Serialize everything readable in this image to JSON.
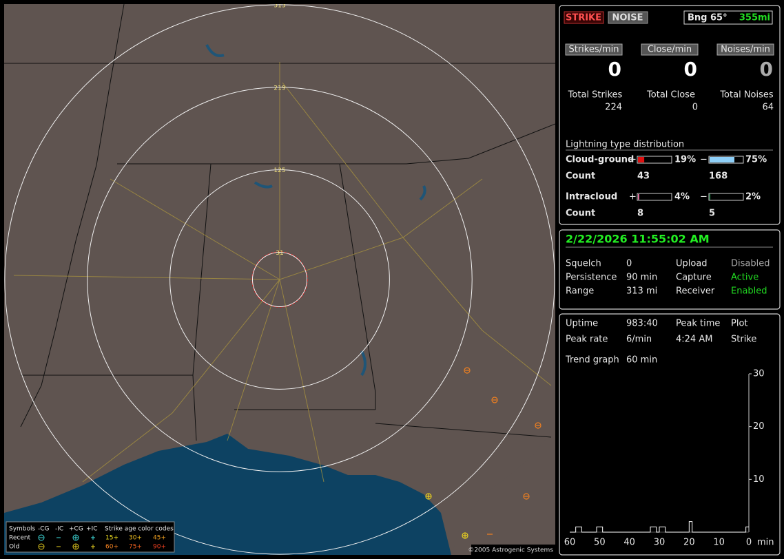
{
  "header": {
    "strike": "STRIKE",
    "noise": "NOISE",
    "bearing": "Bng 65°",
    "distance": "355mi"
  },
  "counters": [
    {
      "rate_label": "Strikes/min",
      "rate": 0,
      "total_label": "Total Strikes",
      "total": 224
    },
    {
      "rate_label": "Close/min",
      "rate": 0,
      "total_label": "Total Close",
      "total": 0
    },
    {
      "rate_label": "Noises/min",
      "rate": 0,
      "total_label": "Total Noises",
      "total": 64
    }
  ],
  "distribution": {
    "title": "Lightning type distribution",
    "count_label": "Count",
    "rows": [
      {
        "name": "Cloud-ground",
        "pos_sign": "+",
        "pos_percent": 19,
        "pos_label": "19%",
        "pos_color": "#e01010",
        "neg_sign": "−",
        "neg_percent": 75,
        "neg_label": "75%",
        "neg_color": "#8ecff8",
        "pos_count": 43,
        "neg_count": 168
      },
      {
        "name": "Intracloud",
        "pos_sign": "+",
        "pos_percent": 4,
        "pos_label": "4%",
        "pos_color": "#e070a0",
        "neg_sign": "−",
        "neg_percent": 2,
        "neg_label": "2%",
        "neg_color": "#20c060",
        "pos_count": 8,
        "neg_count": 5
      }
    ]
  },
  "status": {
    "datetime": "2/22/2026 11:55:02 AM",
    "rows": [
      [
        "Squelch",
        "0",
        "Upload",
        "Disabled"
      ],
      [
        "Persistence",
        "90 min",
        "Capture",
        "Active"
      ],
      [
        "Range",
        "313 mi",
        "Receiver",
        "Enabled"
      ]
    ]
  },
  "stats": {
    "rows": [
      [
        "Uptime",
        "983:40",
        "Peak time",
        "Plot"
      ],
      [
        "Peak rate",
        "6/min",
        "4:24 AM",
        "Strike"
      ],
      [
        "Trend graph",
        "60 min"
      ]
    ]
  },
  "map": {
    "rings": [
      313,
      219,
      125,
      31
    ],
    "legend": {
      "title": "Symbols",
      "types": [
        "-CG",
        "-IC",
        "+CG",
        "+IC"
      ],
      "age_title": "Strike age color codes",
      "rows": [
        {
          "name": "Recent",
          "ages": [
            "15+",
            "30+",
            "45+"
          ]
        },
        {
          "name": "Old",
          "ages": [
            "60+",
            "75+",
            "90+"
          ]
        }
      ]
    },
    "copyright": "©2005 Astrogenic Systems"
  },
  "chart_data": {
    "type": "line",
    "color": "#ffffff",
    "x_unit": "min",
    "x": [
      60,
      58,
      58,
      56,
      56,
      51,
      51,
      49,
      49,
      33,
      33,
      31,
      31,
      30,
      30,
      28,
      28,
      20,
      20,
      19,
      19,
      1,
      1,
      0
    ],
    "values": [
      0,
      0,
      1,
      1,
      0,
      0,
      1,
      1,
      0,
      0,
      1,
      1,
      0,
      0,
      1,
      1,
      0,
      0,
      2,
      2,
      0,
      0,
      1,
      1
    ],
    "xlim": [
      60,
      0
    ],
    "ylim": [
      0,
      30
    ],
    "xticks": [
      60,
      50,
      40,
      30,
      20,
      10,
      0
    ],
    "yticks": [
      10,
      20,
      30
    ]
  }
}
